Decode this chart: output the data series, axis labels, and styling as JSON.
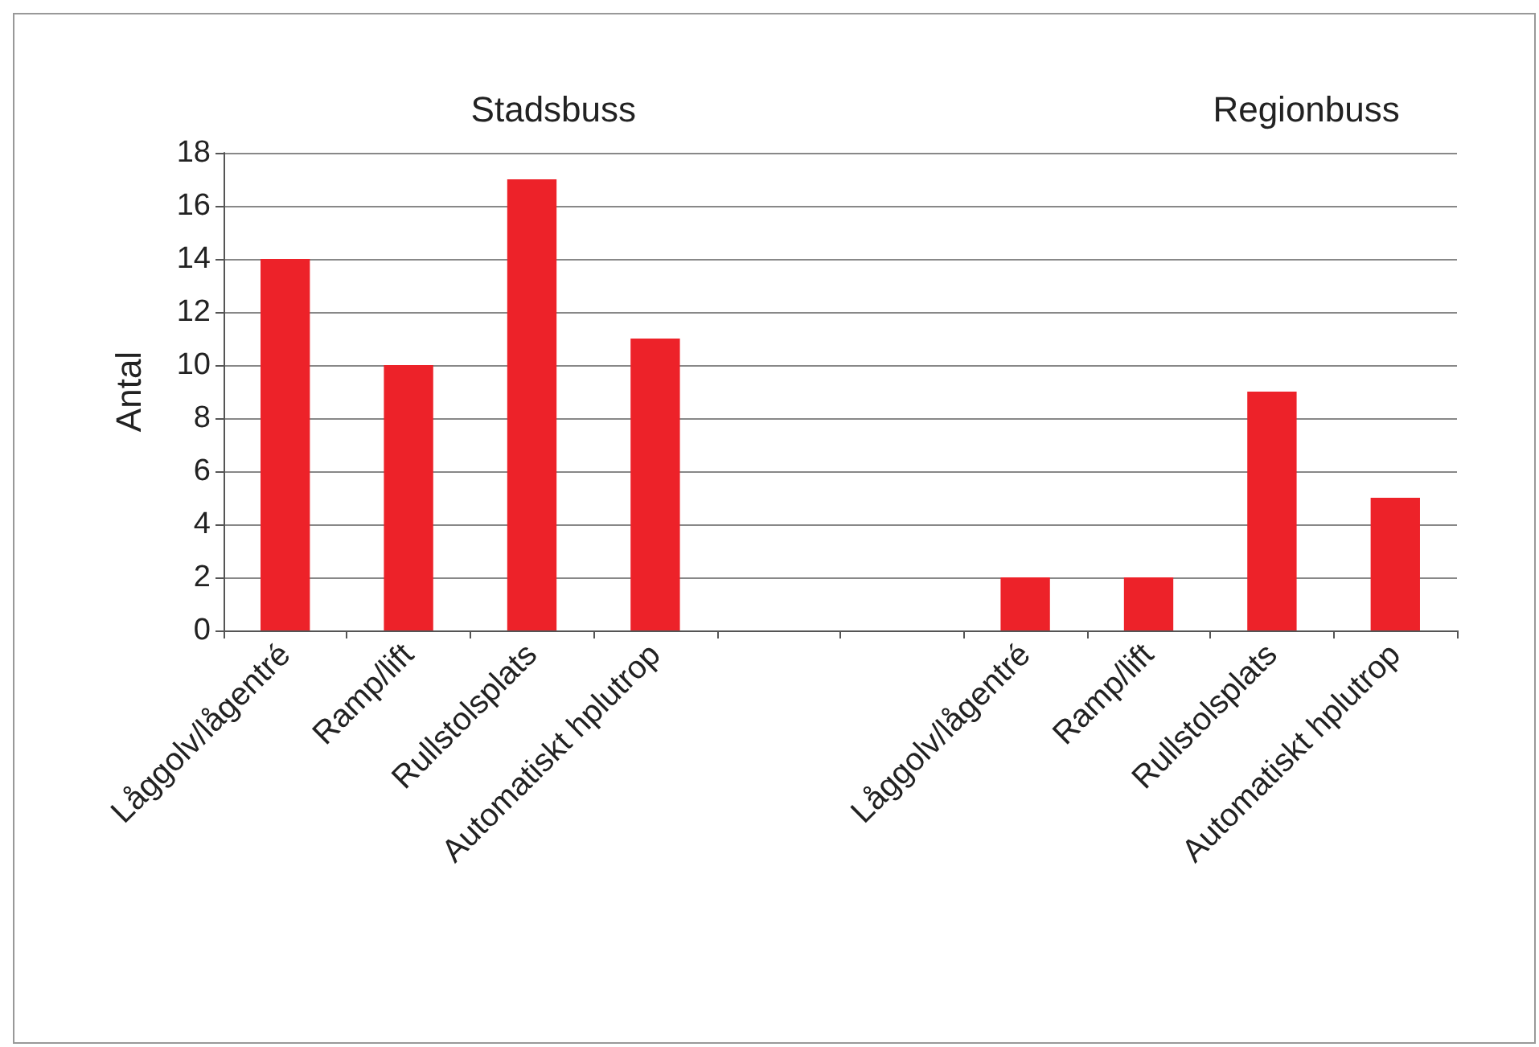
{
  "chart_data": {
    "type": "bar",
    "ylabel": "Antal",
    "categories": [
      "Låggolv/lågentré",
      "Ramp/lift",
      "Rullstolsplats",
      "Automatiskt hplutrop",
      null,
      null,
      "Låggolv/lågentré",
      "Ramp/lift",
      "Rullstolsplats",
      "Automatiskt hplutrop"
    ],
    "values": [
      14,
      10,
      17,
      11,
      null,
      null,
      2,
      2,
      9,
      5
    ],
    "color": "#ed2229",
    "ylim": [
      0,
      18
    ],
    "yticks": [
      0,
      2,
      4,
      6,
      8,
      10,
      12,
      14,
      16,
      18
    ],
    "grid": "y",
    "annotations": [
      "Stadsbuss",
      "Regionbuss"
    ]
  }
}
